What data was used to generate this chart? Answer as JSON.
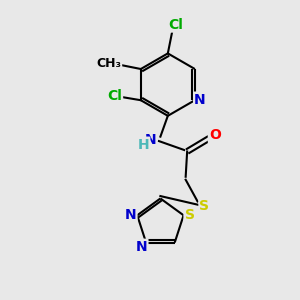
{
  "background_color": "#e8e8e8",
  "bond_color": "#000000",
  "bond_width": 1.5,
  "atom_colors": {
    "C": "#000000",
    "N": "#0000cc",
    "O": "#ff0000",
    "S": "#cccc00",
    "Cl": "#00aa00",
    "NH": "#4db8b8",
    "Me": "#000000"
  },
  "font_size": 10,
  "figsize": [
    3.0,
    3.0
  ],
  "dpi": 100
}
